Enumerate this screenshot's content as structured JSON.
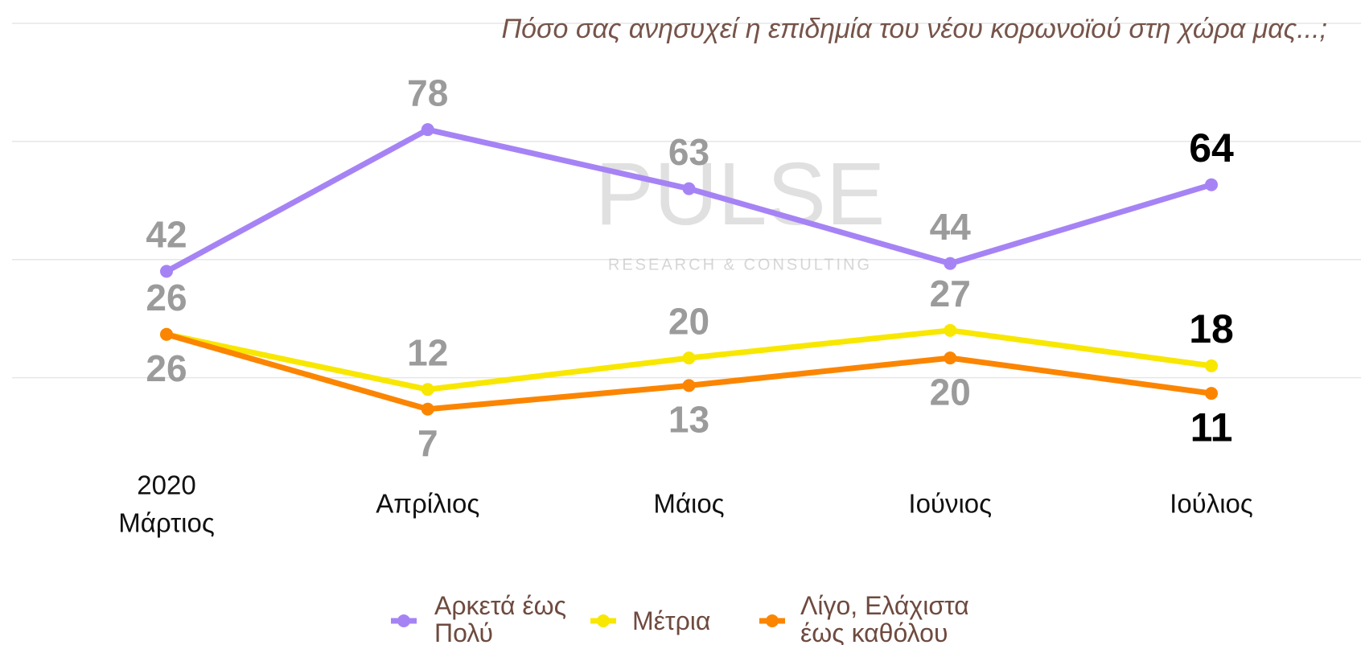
{
  "chart_data": {
    "type": "line",
    "title": "Πόσο σας ανησυχεί η επιδημία του νέου κορωνοϊού στη χώρα μας...;",
    "year": "2020",
    "categories": [
      "Μάρτιος",
      "Απρίλιος",
      "Μάιος",
      "Ιούνιος",
      "Ιούλιος"
    ],
    "series": [
      {
        "name": "Αρκετά έως Πολύ",
        "color": "#a683f5",
        "values": [
          42,
          78,
          63,
          44,
          64
        ]
      },
      {
        "name": "Μέτρια",
        "color": "#f8e700",
        "values": [
          26,
          12,
          20,
          27,
          18
        ]
      },
      {
        "name": "Λίγο, Ελάχιστα έως καθόλου",
        "color": "#fb8500",
        "values": [
          26,
          7,
          13,
          20,
          11
        ]
      }
    ],
    "ylim": [
      0,
      105
    ],
    "yticks": [
      15,
      45,
      75,
      105
    ],
    "grid": true,
    "ytick_labels": false,
    "legend": "bottom",
    "watermark": {
      "brand": "PULSE",
      "tagline": "RESEARCH & CONSULTING"
    }
  }
}
